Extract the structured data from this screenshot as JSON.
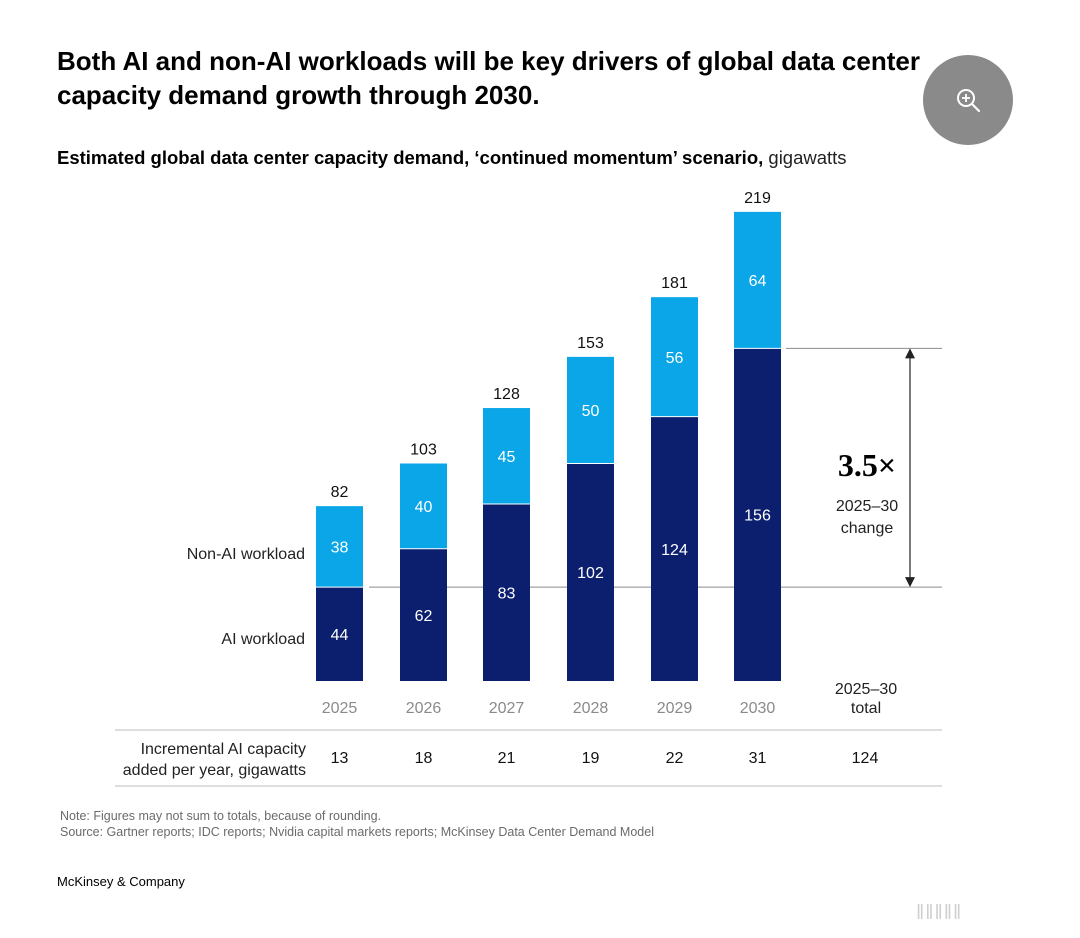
{
  "title": "Both AI and non-AI workloads will be key drivers of global data center capacity demand growth through 2030.",
  "zoom_button": {
    "icon": "zoom-in-icon"
  },
  "subtitle": {
    "main": "Estimated global data center capacity demand, ‘continued momentum’ scenario,",
    "unit": "gigawatts"
  },
  "chart_data": {
    "type": "bar",
    "stacked": true,
    "categories": [
      "2025",
      "2026",
      "2027",
      "2028",
      "2029",
      "2030"
    ],
    "series": [
      {
        "name": "AI workload",
        "values": [
          44,
          62,
          83,
          102,
          124,
          156
        ],
        "color": "#0b1f6e"
      },
      {
        "name": "Non-AI workload",
        "values": [
          38,
          40,
          45,
          50,
          56,
          64
        ],
        "color": "#0aa6e8"
      }
    ],
    "totals": [
      82,
      103,
      128,
      153,
      181,
      219
    ],
    "legend": [
      "Non-AI workload",
      "AI workload"
    ],
    "annotation": {
      "multiplier": "3.5×",
      "line1": "2025–30",
      "line2": "change"
    },
    "total_header": {
      "line1": "2025–30",
      "line2": "total"
    },
    "incremental": {
      "label_line1": "Incremental AI capacity",
      "label_line2": "added per year, gigawatts",
      "values": [
        "13",
        "18",
        "21",
        "19",
        "22",
        "31"
      ],
      "total": "124"
    },
    "ylim": [
      0,
      219
    ]
  },
  "note": "Note: Figures may not sum to totals, because of rounding.",
  "source": "Source: Gartner reports; IDC reports; Nvidia capital markets reports; McKinsey Data Center Demand Model",
  "brand": "McKinsey & Company",
  "corner_text": "‖‖‖‖‖"
}
